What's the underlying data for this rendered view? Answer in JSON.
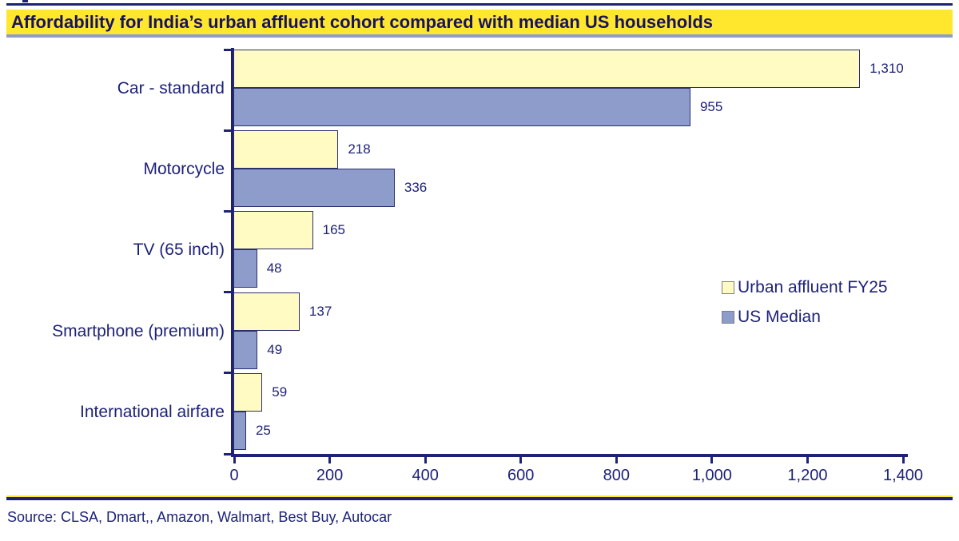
{
  "title": "Affordability for India’s urban affluent cohort compared with median US households",
  "source": "Source: CLSA, Dmart,, Amazon, Walmart, Best Buy, Autocar",
  "colors": {
    "navy": "#1E2277",
    "title_background": "#FFE72E",
    "title_text": "#17135E",
    "title_underline": "#8D9DC9",
    "urban_affluent_bar": "#FFFBC2",
    "us_median_bar": "#8D9CCA",
    "legend_swatch_border": "#7F7F7F"
  },
  "chart_data": {
    "type": "bar",
    "orientation": "horizontal",
    "title": "Affordability for India’s urban affluent cohort compared with median US households",
    "categories": [
      "Car - standard",
      "Motorcycle",
      "TV (65 inch)",
      "Smartphone (premium)",
      "International airfare"
    ],
    "series": [
      {
        "name": "Urban affluent FY25",
        "color": "#FFFBC2",
        "values": [
          1310,
          218,
          165,
          137,
          59
        ]
      },
      {
        "name": "US Median",
        "color": "#8D9CCA",
        "values": [
          955,
          336,
          48,
          49,
          25
        ]
      }
    ],
    "value_labels": {
      "Urban affluent FY25": [
        "1,310",
        "218",
        "165",
        "137",
        "59"
      ],
      "US Median": [
        "955",
        "336",
        "48",
        "49",
        "25"
      ]
    },
    "xlim": [
      0,
      1400
    ],
    "x_ticks": [
      0,
      200,
      400,
      600,
      800,
      1000,
      1200,
      1400
    ],
    "x_tick_labels": [
      "0",
      "200",
      "400",
      "600",
      "800",
      "1,000",
      "1,200",
      "1,400"
    ],
    "grid": false,
    "legend_position": "middle-right"
  }
}
